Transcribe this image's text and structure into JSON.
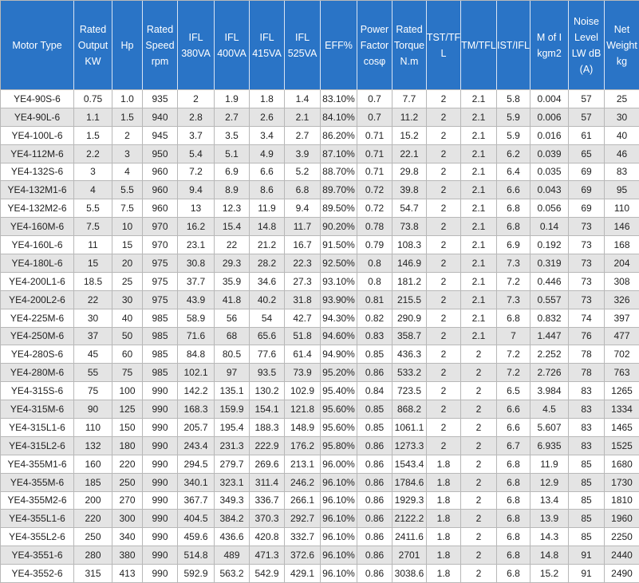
{
  "table": {
    "header": [
      [
        "Motor Type"
      ],
      [
        "Rated",
        "Output",
        "KW"
      ],
      [
        "Hp"
      ],
      [
        "Rated",
        "Speed",
        "rpm"
      ],
      [
        "IFL",
        "380VA"
      ],
      [
        "IFL",
        "400VA"
      ],
      [
        "IFL",
        "415VA"
      ],
      [
        "IFL",
        "525VA"
      ],
      [
        "EFF%"
      ],
      [
        "Power",
        "Factor",
        "cosφ"
      ],
      [
        "Rated",
        "Torque",
        "N.m"
      ],
      [
        "TST/TF",
        "L"
      ],
      [
        "TM/TFL"
      ],
      [
        "IST/IFL"
      ],
      [
        "M of I",
        "kgm2"
      ],
      [
        "Noise",
        "Level",
        "LW dB",
        "(A)"
      ],
      [
        "Net",
        "Weight",
        "kg"
      ]
    ],
    "rows": [
      [
        "YE4-90S-6",
        "0.75",
        "1.0",
        "935",
        "2",
        "1.9",
        "1.8",
        "1.4",
        "83.10%",
        "0.7",
        "7.7",
        "2",
        "2.1",
        "5.8",
        "0.004",
        "57",
        "25"
      ],
      [
        "YE4-90L-6",
        "1.1",
        "1.5",
        "940",
        "2.8",
        "2.7",
        "2.6",
        "2.1",
        "84.10%",
        "0.7",
        "11.2",
        "2",
        "2.1",
        "5.9",
        "0.006",
        "57",
        "30"
      ],
      [
        "YE4-100L-6",
        "1.5",
        "2",
        "945",
        "3.7",
        "3.5",
        "3.4",
        "2.7",
        "86.20%",
        "0.71",
        "15.2",
        "2",
        "2.1",
        "5.9",
        "0.016",
        "61",
        "40"
      ],
      [
        "YE4-112M-6",
        "2.2",
        "3",
        "950",
        "5.4",
        "5.1",
        "4.9",
        "3.9",
        "87.10%",
        "0.71",
        "22.1",
        "2",
        "2.1",
        "6.2",
        "0.039",
        "65",
        "46"
      ],
      [
        "YE4-132S-6",
        "3",
        "4",
        "960",
        "7.2",
        "6.9",
        "6.6",
        "5.2",
        "88.70%",
        "0.71",
        "29.8",
        "2",
        "2.1",
        "6.4",
        "0.035",
        "69",
        "83"
      ],
      [
        "YE4-132M1-6",
        "4",
        "5.5",
        "960",
        "9.4",
        "8.9",
        "8.6",
        "6.8",
        "89.70%",
        "0.72",
        "39.8",
        "2",
        "2.1",
        "6.6",
        "0.043",
        "69",
        "95"
      ],
      [
        "YE4-132M2-6",
        "5.5",
        "7.5",
        "960",
        "13",
        "12.3",
        "11.9",
        "9.4",
        "89.50%",
        "0.72",
        "54.7",
        "2",
        "2.1",
        "6.8",
        "0.056",
        "69",
        "110"
      ],
      [
        "YE4-160M-6",
        "7.5",
        "10",
        "970",
        "16.2",
        "15.4",
        "14.8",
        "11.7",
        "90.20%",
        "0.78",
        "73.8",
        "2",
        "2.1",
        "6.8",
        "0.14",
        "73",
        "146"
      ],
      [
        "YE4-160L-6",
        "11",
        "15",
        "970",
        "23.1",
        "22",
        "21.2",
        "16.7",
        "91.50%",
        "0.79",
        "108.3",
        "2",
        "2.1",
        "6.9",
        "0.192",
        "73",
        "168"
      ],
      [
        "YE4-180L-6",
        "15",
        "20",
        "975",
        "30.8",
        "29.3",
        "28.2",
        "22.3",
        "92.50%",
        "0.8",
        "146.9",
        "2",
        "2.1",
        "7.3",
        "0.319",
        "73",
        "204"
      ],
      [
        "YE4-200L1-6",
        "18.5",
        "25",
        "975",
        "37.7",
        "35.9",
        "34.6",
        "27.3",
        "93.10%",
        "0.8",
        "181.2",
        "2",
        "2.1",
        "7.2",
        "0.446",
        "73",
        "308"
      ],
      [
        "YE4-200L2-6",
        "22",
        "30",
        "975",
        "43.9",
        "41.8",
        "40.2",
        "31.8",
        "93.90%",
        "0.81",
        "215.5",
        "2",
        "2.1",
        "7.3",
        "0.557",
        "73",
        "326"
      ],
      [
        "YE4-225M-6",
        "30",
        "40",
        "985",
        "58.9",
        "56",
        "54",
        "42.7",
        "94.30%",
        "0.82",
        "290.9",
        "2",
        "2.1",
        "6.8",
        "0.832",
        "74",
        "397"
      ],
      [
        "YE4-250M-6",
        "37",
        "50",
        "985",
        "71.6",
        "68",
        "65.6",
        "51.8",
        "94.60%",
        "0.83",
        "358.7",
        "2",
        "2.1",
        "7",
        "1.447",
        "76",
        "477"
      ],
      [
        "YE4-280S-6",
        "45",
        "60",
        "985",
        "84.8",
        "80.5",
        "77.6",
        "61.4",
        "94.90%",
        "0.85",
        "436.3",
        "2",
        "2",
        "7.2",
        "2.252",
        "78",
        "702"
      ],
      [
        "YE4-280M-6",
        "55",
        "75",
        "985",
        "102.1",
        "97",
        "93.5",
        "73.9",
        "95.20%",
        "0.86",
        "533.2",
        "2",
        "2",
        "7.2",
        "2.726",
        "78",
        "763"
      ],
      [
        "YE4-315S-6",
        "75",
        "100",
        "990",
        "142.2",
        "135.1",
        "130.2",
        "102.9",
        "95.40%",
        "0.84",
        "723.5",
        "2",
        "2",
        "6.5",
        "3.984",
        "83",
        "1265"
      ],
      [
        "YE4-315M-6",
        "90",
        "125",
        "990",
        "168.3",
        "159.9",
        "154.1",
        "121.8",
        "95.60%",
        "0.85",
        "868.2",
        "2",
        "2",
        "6.6",
        "4.5",
        "83",
        "1334"
      ],
      [
        "YE4-315L1-6",
        "110",
        "150",
        "990",
        "205.7",
        "195.4",
        "188.3",
        "148.9",
        "95.60%",
        "0.85",
        "1061.1",
        "2",
        "2",
        "6.6",
        "5.607",
        "83",
        "1465"
      ],
      [
        "YE4-315L2-6",
        "132",
        "180",
        "990",
        "243.4",
        "231.3",
        "222.9",
        "176.2",
        "95.80%",
        "0.86",
        "1273.3",
        "2",
        "2",
        "6.7",
        "6.935",
        "83",
        "1525"
      ],
      [
        "YE4-355M1-6",
        "160",
        "220",
        "990",
        "294.5",
        "279.7",
        "269.6",
        "213.1",
        "96.00%",
        "0.86",
        "1543.4",
        "1.8",
        "2",
        "6.8",
        "11.9",
        "85",
        "1680"
      ],
      [
        "YE4-355M-6",
        "185",
        "250",
        "990",
        "340.1",
        "323.1",
        "311.4",
        "246.2",
        "96.10%",
        "0.86",
        "1784.6",
        "1.8",
        "2",
        "6.8",
        "12.9",
        "85",
        "1730"
      ],
      [
        "YE4-355M2-6",
        "200",
        "270",
        "990",
        "367.7",
        "349.3",
        "336.7",
        "266.1",
        "96.10%",
        "0.86",
        "1929.3",
        "1.8",
        "2",
        "6.8",
        "13.4",
        "85",
        "1810"
      ],
      [
        "YE4-355L1-6",
        "220",
        "300",
        "990",
        "404.5",
        "384.2",
        "370.3",
        "292.7",
        "96.10%",
        "0.86",
        "2122.2",
        "1.8",
        "2",
        "6.8",
        "13.9",
        "85",
        "1960"
      ],
      [
        "YE4-355L2-6",
        "250",
        "340",
        "990",
        "459.6",
        "436.6",
        "420.8",
        "332.7",
        "96.10%",
        "0.86",
        "2411.6",
        "1.8",
        "2",
        "6.8",
        "14.3",
        "85",
        "2250"
      ],
      [
        "YE4-3551-6",
        "280",
        "380",
        "990",
        "514.8",
        "489",
        "471.3",
        "372.6",
        "96.10%",
        "0.86",
        "2701",
        "1.8",
        "2",
        "6.8",
        "14.8",
        "91",
        "2440"
      ],
      [
        "YE4-3552-6",
        "315",
        "413",
        "990",
        "592.9",
        "563.2",
        "542.9",
        "429.1",
        "96.10%",
        "0.86",
        "3038.6",
        "1.8",
        "2",
        "6.8",
        "15.2",
        "91",
        "2490"
      ]
    ]
  }
}
